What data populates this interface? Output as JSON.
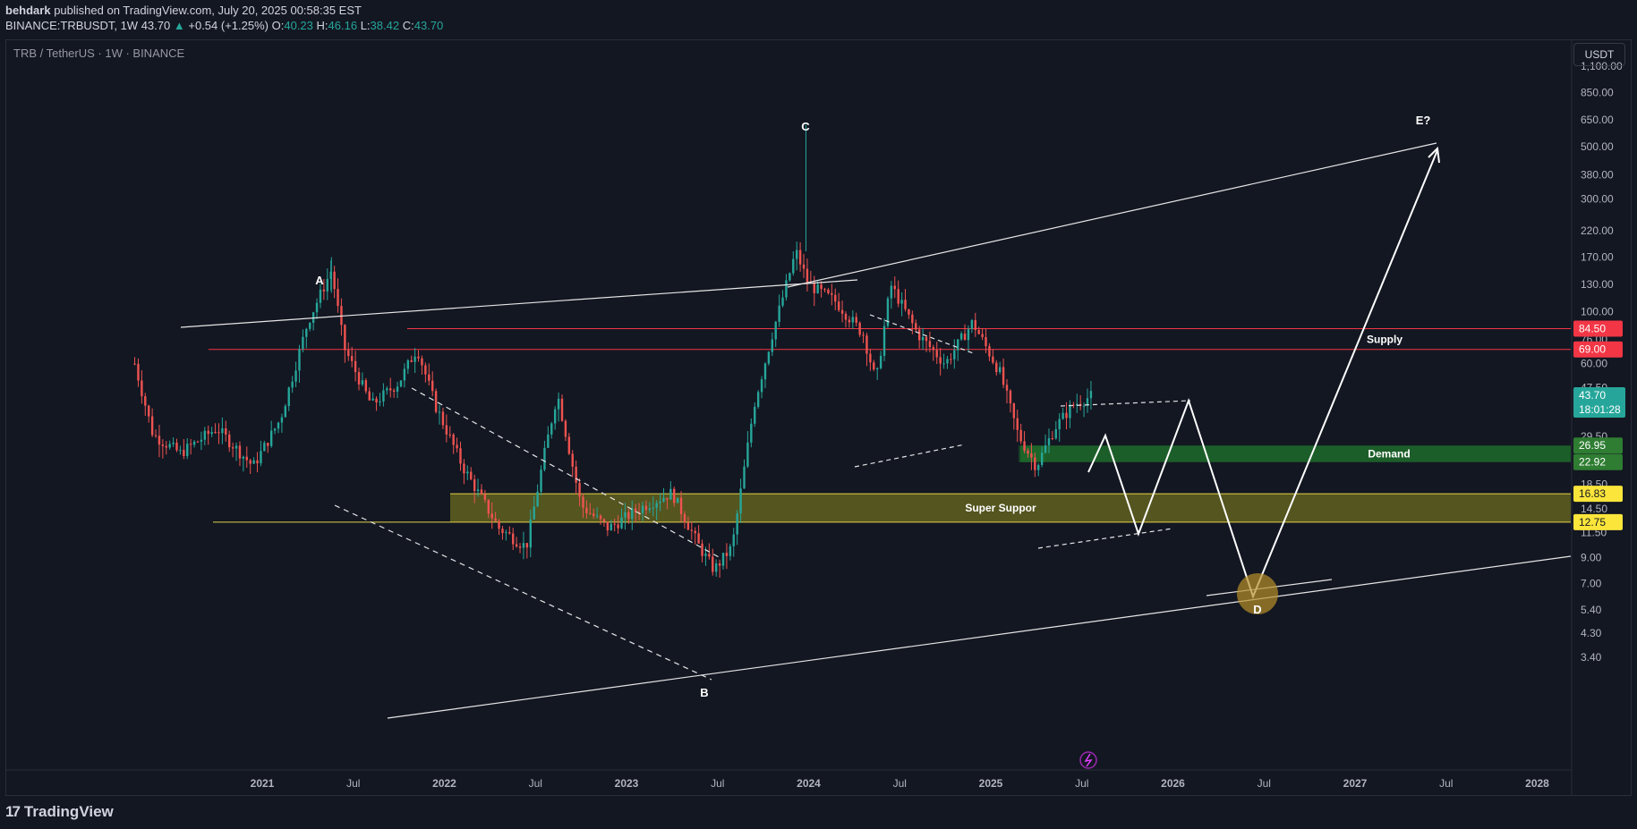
{
  "header": {
    "author": "behdark",
    "published_text": "published on TradingView.com, July 20, 2025 00:58:35 EST",
    "symbol": "BINANCE:TRBUSDT, 1W",
    "last": "43.70",
    "change_arrow": "▲",
    "change": "+0.54 (+1.25%)",
    "o_label": "O:",
    "o": "40.23",
    "h_label": "H:",
    "h": "46.16",
    "l_label": "L:",
    "l": "38.42",
    "c_label": "C:",
    "c": "43.70"
  },
  "legend": {
    "title": "TRB / TetherUS · 1W · BINANCE"
  },
  "price_scale": {
    "unit_button": "USDT"
  },
  "footer": {
    "brand": "TradingView",
    "brand_mark": "17"
  },
  "colors": {
    "background": "#131722",
    "up": "#26a69a",
    "down": "#ef5350",
    "supply_line": "#f23645",
    "demand_zone": "#1b5e20",
    "super_support_zone": "#6b6b1f",
    "yellow_label": "#ffeb3b",
    "last_price_label": "#26a69a"
  },
  "chart_data": {
    "type": "candlestick",
    "scale": "log",
    "ylim": [
      3.3,
      1300
    ],
    "y_ticks": [
      "1,100.00",
      "850.00",
      "650.00",
      "500.00",
      "380.00",
      "300.00",
      "220.00",
      "170.00",
      "130.00",
      "100.00",
      "76.00",
      "60.00",
      "47.50",
      "37.50",
      "29.50",
      "23.20",
      "18.50",
      "14.50",
      "11.50",
      "9.00",
      "7.00",
      "5.40",
      "4.30",
      "3.40"
    ],
    "x_ticks": [
      "2021",
      "Jul",
      "2022",
      "Jul",
      "2023",
      "Jul",
      "2024",
      "Jul",
      "2025",
      "Jul",
      "2026",
      "Jul",
      "2027",
      "Jul",
      "2028"
    ],
    "price_labels": [
      {
        "value": "84.50",
        "kind": "supply"
      },
      {
        "value": "69.00",
        "kind": "supply"
      },
      {
        "value": "26.95",
        "kind": "demand"
      },
      {
        "value": "22.92",
        "kind": "demand"
      },
      {
        "value": "16.83",
        "kind": "support"
      },
      {
        "value": "12.75",
        "kind": "support"
      }
    ],
    "last_price": {
      "value": "43.70",
      "countdown": "18:01:28"
    },
    "zones": [
      {
        "name": "Supply",
        "low": 69.0,
        "high": 84.5
      },
      {
        "name": "Demand",
        "low": 22.92,
        "high": 26.95
      },
      {
        "name": "Super Suppor",
        "low": 12.75,
        "high": 16.83
      }
    ],
    "wave_labels": [
      "A",
      "B",
      "C",
      "D",
      "E?"
    ],
    "candles_approx": [
      {
        "date": "2020-10",
        "value": 60
      },
      {
        "date": "2021-05",
        "value": 150
      },
      {
        "date": "2022-06",
        "value": 8
      },
      {
        "date": "2023-06",
        "value": 8
      },
      {
        "date": "2023-12",
        "value": 600
      },
      {
        "date": "2024-06",
        "value": 140
      },
      {
        "date": "2025-04",
        "value": 20
      },
      {
        "date": "2025-07",
        "value": 43.7
      }
    ]
  }
}
